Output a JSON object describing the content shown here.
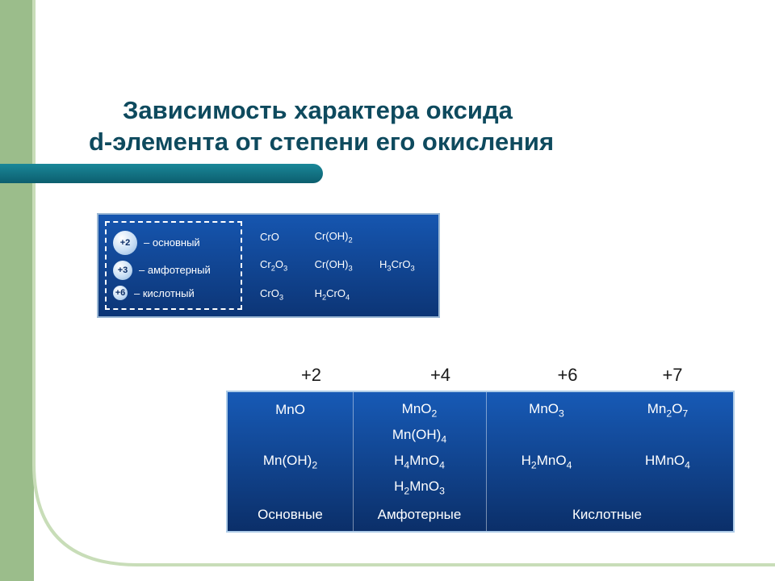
{
  "colors": {
    "left_bar": "#9bbd8b",
    "curve_stroke": "#c8ddb8",
    "title": "#0e4a5e",
    "accent_bar_top": "#1a8899",
    "accent_bar_bottom": "#0c5e6e",
    "panel_bg_top": "#1656b0",
    "panel_bg_bottom": "#0c3576",
    "panel_border": "#9cb8d4",
    "panel_text": "#ffffff",
    "oxstate_text": "#1a1a1a"
  },
  "title_line1": "Зависимость характера оксида",
  "title_line2": "d-элемента от степени его окисления",
  "legend": {
    "items": [
      {
        "value": "+2",
        "label": "– основный"
      },
      {
        "value": "+3",
        "label": "– амфотерный"
      },
      {
        "value": "+6",
        "label": "– кислотный"
      }
    ],
    "formulas": [
      [
        "CrO",
        "Cr(OH)<sub>2</sub>",
        ""
      ],
      [
        "Cr<sub>2</sub>O<sub>3</sub>",
        "Cr(OH)<sub>3</sub>",
        "H<sub>3</sub>CrO<sub>3</sub>"
      ],
      [
        "CrO<sub>3</sub>",
        "H<sub>2</sub>CrO<sub>4</sub>",
        ""
      ]
    ]
  },
  "oxidation_states": [
    "+2",
    "+4",
    "+6",
    "+7"
  ],
  "mn_table": {
    "rows": [
      [
        "MnO",
        "MnO<sub>2</sub>",
        "MnO<sub>3</sub>",
        "Mn<sub>2</sub>O<sub>7</sub>"
      ],
      [
        "",
        "Mn(OH)<sub>4</sub>",
        "",
        ""
      ],
      [
        "Mn(OH)<sub>2</sub>",
        "H<sub>4</sub>MnO<sub>4</sub>",
        "H<sub>2</sub>MnO<sub>4</sub>",
        "HMnO<sub>4</sub>"
      ],
      [
        "",
        "H<sub>2</sub>MnO<sub>3</sub>",
        "",
        ""
      ]
    ],
    "categories": [
      "Основные",
      "Амфотерные",
      "Кислотные"
    ]
  }
}
